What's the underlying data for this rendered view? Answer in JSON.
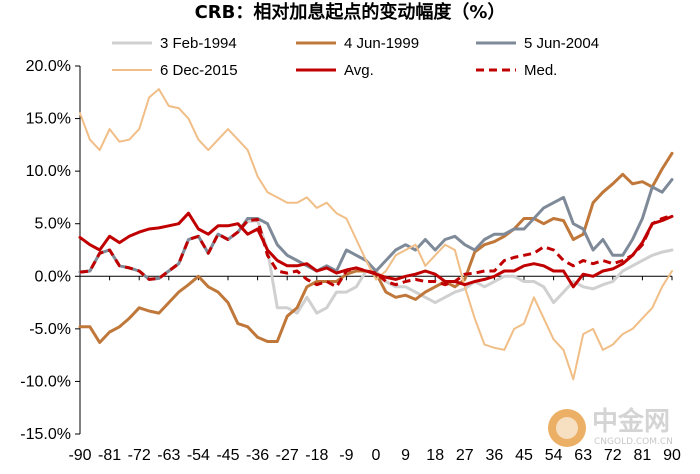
{
  "chart_data": {
    "type": "line",
    "title": "CRB：相对加息起点的变动幅度（%）",
    "xlabel": "",
    "ylabel": "",
    "ylim": [
      -15,
      20
    ],
    "xlim": [
      -90,
      90
    ],
    "y_ticks": [
      -15,
      -10,
      -5,
      0,
      5,
      10,
      15,
      20
    ],
    "y_tick_labels": [
      "-15.0%",
      "-10.0%",
      "-5.0%",
      "0.0%",
      "5.0%",
      "10.0%",
      "15.0%",
      "20.0%"
    ],
    "x_ticks": [
      -90,
      -81,
      -72,
      -63,
      -54,
      -45,
      -36,
      -27,
      -18,
      -9,
      0,
      9,
      18,
      27,
      36,
      45,
      54,
      63,
      72,
      81,
      90
    ],
    "x_tick_labels": [
      "-90",
      "-81",
      "-72",
      "-63",
      "-54",
      "-45",
      "-36",
      "-27",
      "-18",
      "-9",
      "0",
      "9",
      "18",
      "27",
      "36",
      "45",
      "54",
      "63",
      "72",
      "81",
      "90"
    ],
    "grid": false,
    "legend_position": "top",
    "series": [
      {
        "name": "3 Feb-1994",
        "color": "#d0d0d0",
        "dash": "solid",
        "width": 3,
        "x": [
          -90,
          -87,
          -84,
          -81,
          -78,
          -75,
          -72,
          -69,
          -66,
          -63,
          -60,
          -57,
          -54,
          -51,
          -48,
          -45,
          -42,
          -39,
          -36,
          -33,
          -30,
          -27,
          -24,
          -21,
          -18,
          -15,
          -12,
          -9,
          -6,
          -3,
          0,
          3,
          6,
          9,
          12,
          15,
          18,
          21,
          24,
          27,
          30,
          33,
          36,
          39,
          42,
          45,
          48,
          51,
          54,
          57,
          60,
          63,
          66,
          69,
          72,
          75,
          78,
          81,
          84,
          87,
          90
        ],
        "y": [
          0.4,
          0.5,
          2.2,
          2.5,
          1.0,
          0.8,
          0.5,
          -0.3,
          -0.2,
          0.5,
          1.2,
          3.5,
          3.8,
          2.2,
          4.0,
          3.5,
          4.2,
          5.2,
          5.3,
          2.5,
          -3.0,
          -3.0,
          -3.5,
          -2.0,
          -3.5,
          -3.0,
          -1.5,
          -1.5,
          -1.0,
          0.5,
          0.5,
          -0.5,
          -1.0,
          -1.0,
          -1.5,
          -2.0,
          -2.5,
          -2.0,
          -1.5,
          -1.2,
          -0.5,
          -1.0,
          -0.5,
          0.0,
          0.0,
          -0.5,
          -0.5,
          -1.0,
          -2.5,
          -1.5,
          -0.5,
          -1.0,
          -1.2,
          -0.8,
          -0.5,
          0.5,
          1.0,
          1.5,
          2.0,
          2.3,
          2.5
        ]
      },
      {
        "name": "4 Jun-1999",
        "color": "#c0773a",
        "dash": "solid",
        "width": 3,
        "x": [
          -90,
          -87,
          -84,
          -81,
          -78,
          -75,
          -72,
          -69,
          -66,
          -63,
          -60,
          -57,
          -54,
          -51,
          -48,
          -45,
          -42,
          -39,
          -36,
          -33,
          -30,
          -27,
          -24,
          -21,
          -18,
          -15,
          -12,
          -9,
          -6,
          -3,
          0,
          3,
          6,
          9,
          12,
          15,
          18,
          21,
          24,
          27,
          30,
          33,
          36,
          39,
          42,
          45,
          48,
          51,
          54,
          57,
          60,
          63,
          66,
          69,
          72,
          75,
          78,
          81,
          84,
          87,
          90
        ],
        "y": [
          -4.8,
          -4.8,
          -6.3,
          -5.3,
          -4.8,
          -4.0,
          -3.0,
          -3.3,
          -3.5,
          -2.5,
          -1.5,
          -0.8,
          0.0,
          -1.0,
          -1.5,
          -2.5,
          -4.5,
          -4.8,
          -5.8,
          -6.2,
          -6.2,
          -3.8,
          -3.0,
          -1.0,
          -0.5,
          -0.5,
          -0.5,
          0.2,
          0.5,
          0.5,
          0.3,
          -1.5,
          -2.0,
          -1.8,
          -2.2,
          -1.5,
          -1.0,
          -0.5,
          -1.0,
          -0.3,
          2.3,
          3.0,
          3.3,
          3.8,
          4.5,
          5.5,
          5.5,
          5.0,
          5.5,
          5.3,
          3.5,
          4.0,
          7.0,
          8.0,
          8.8,
          9.7,
          8.8,
          9.0,
          8.5,
          10.2,
          11.7
        ]
      },
      {
        "name": "5 Jun-2004",
        "color": "#7f8a99",
        "dash": "solid",
        "width": 3,
        "x": [
          -90,
          -87,
          -84,
          -81,
          -78,
          -75,
          -72,
          -69,
          -66,
          -63,
          -60,
          -57,
          -54,
          -51,
          -48,
          -45,
          -42,
          -39,
          -36,
          -33,
          -30,
          -27,
          -24,
          -21,
          -18,
          -15,
          -12,
          -9,
          -6,
          -3,
          0,
          3,
          6,
          9,
          12,
          15,
          18,
          21,
          24,
          27,
          30,
          33,
          36,
          39,
          42,
          45,
          48,
          51,
          54,
          57,
          60,
          63,
          66,
          69,
          72,
          75,
          78,
          81,
          84,
          87,
          90
        ],
        "y": [
          0.4,
          0.5,
          2.2,
          2.5,
          1.0,
          0.8,
          0.5,
          -0.3,
          -0.2,
          0.5,
          1.2,
          3.5,
          3.8,
          2.2,
          4.0,
          3.5,
          4.2,
          5.5,
          5.5,
          5.0,
          3.0,
          2.0,
          1.5,
          1.0,
          0.5,
          1.0,
          0.5,
          2.5,
          2.0,
          1.5,
          0.5,
          1.5,
          2.5,
          3.0,
          2.5,
          3.5,
          2.5,
          3.5,
          3.8,
          3.0,
          2.5,
          3.5,
          4.0,
          4.0,
          4.5,
          4.5,
          5.5,
          6.5,
          7.0,
          7.5,
          5.0,
          4.5,
          2.5,
          3.5,
          2.0,
          2.0,
          3.5,
          5.5,
          8.5,
          8.0,
          9.2
        ]
      },
      {
        "name": "6 Dec-2015",
        "color": "#f0be86",
        "dash": "solid",
        "width": 2,
        "x": [
          -90,
          -87,
          -84,
          -81,
          -78,
          -75,
          -72,
          -69,
          -66,
          -63,
          -60,
          -57,
          -54,
          -51,
          -48,
          -45,
          -42,
          -39,
          -36,
          -33,
          -30,
          -27,
          -24,
          -21,
          -18,
          -15,
          -12,
          -9,
          -6,
          -3,
          0,
          3,
          6,
          9,
          12,
          15,
          18,
          21,
          24,
          27,
          30,
          33,
          36,
          39,
          42,
          45,
          48,
          51,
          54,
          57,
          60,
          63,
          66,
          69,
          72,
          75,
          78,
          81,
          84,
          87,
          90
        ],
        "y": [
          15.5,
          13.0,
          12.0,
          14.0,
          12.8,
          13.0,
          14.0,
          17.0,
          17.8,
          16.2,
          16.0,
          15.0,
          13.0,
          12.0,
          13.0,
          14.0,
          13.0,
          12.0,
          9.5,
          8.0,
          7.5,
          7.0,
          7.0,
          7.5,
          6.5,
          7.0,
          6.0,
          5.5,
          3.5,
          1.5,
          -0.3,
          0.5,
          2.0,
          2.5,
          3.0,
          1.0,
          2.0,
          3.0,
          2.5,
          -1.0,
          -4.0,
          -6.5,
          -6.8,
          -7.0,
          -5.0,
          -4.5,
          -2.0,
          -4.0,
          -6.0,
          -7.0,
          -9.8,
          -5.5,
          -5.0,
          -7.0,
          -6.5,
          -5.5,
          -5.0,
          -4.0,
          -3.0,
          -1.0,
          0.5
        ]
      },
      {
        "name": "Avg.",
        "color": "#c00000",
        "dash": "solid",
        "width": 3,
        "x": [
          -90,
          -87,
          -84,
          -81,
          -78,
          -75,
          -72,
          -69,
          -66,
          -63,
          -60,
          -57,
          -54,
          -51,
          -48,
          -45,
          -42,
          -39,
          -36,
          -33,
          -30,
          -27,
          -24,
          -21,
          -18,
          -15,
          -12,
          -9,
          -6,
          -3,
          0,
          3,
          6,
          9,
          12,
          15,
          18,
          21,
          24,
          27,
          30,
          33,
          36,
          39,
          42,
          45,
          48,
          51,
          54,
          57,
          60,
          63,
          66,
          69,
          72,
          75,
          78,
          81,
          84,
          87,
          90
        ],
        "y": [
          3.7,
          3.0,
          2.5,
          3.8,
          3.2,
          3.8,
          4.2,
          4.5,
          4.6,
          4.8,
          5.0,
          6.0,
          4.5,
          4.0,
          4.8,
          4.8,
          5.0,
          4.0,
          4.5,
          2.5,
          1.5,
          1.0,
          1.0,
          1.2,
          0.5,
          0.8,
          0.3,
          0.6,
          0.8,
          0.5,
          0.2,
          -0.1,
          -0.3,
          0.0,
          0.2,
          0.5,
          0.2,
          -0.5,
          -0.5,
          -0.8,
          -0.5,
          -0.3,
          0.0,
          0.5,
          0.5,
          1.0,
          1.2,
          1.0,
          0.5,
          0.5,
          -1.0,
          0.2,
          0.0,
          0.5,
          0.7,
          1.2,
          2.0,
          3.2,
          5.0,
          5.3,
          5.7
        ]
      },
      {
        "name": "Med.",
        "color": "#c00000",
        "dash": "dashed",
        "width": 3,
        "x": [
          -90,
          -87,
          -84,
          -81,
          -78,
          -75,
          -72,
          -69,
          -66,
          -63,
          -60,
          -57,
          -54,
          -51,
          -48,
          -45,
          -42,
          -39,
          -36,
          -33,
          -30,
          -27,
          -24,
          -21,
          -18,
          -15,
          -12,
          -9,
          -6,
          -3,
          0,
          3,
          6,
          9,
          12,
          15,
          18,
          21,
          24,
          27,
          30,
          33,
          36,
          39,
          42,
          45,
          48,
          51,
          54,
          57,
          60,
          63,
          66,
          69,
          72,
          75,
          78,
          81,
          84,
          87,
          90
        ],
        "y": [
          0.4,
          0.5,
          2.2,
          2.5,
          1.0,
          0.8,
          0.5,
          -0.3,
          -0.2,
          0.5,
          1.2,
          3.5,
          3.8,
          2.2,
          4.0,
          3.5,
          4.2,
          5.3,
          5.4,
          2.0,
          0.5,
          0.3,
          0.5,
          -0.3,
          -0.8,
          -0.5,
          -1.0,
          0.5,
          0.8,
          0.5,
          0.3,
          -0.5,
          -0.8,
          -0.5,
          -0.3,
          -0.5,
          -0.5,
          -0.8,
          -0.5,
          0.2,
          0.3,
          0.5,
          0.5,
          1.5,
          1.8,
          2.0,
          2.2,
          2.8,
          2.5,
          1.5,
          1.0,
          1.5,
          1.2,
          1.5,
          1.2,
          1.5,
          2.0,
          3.0,
          5.0,
          5.5,
          5.8
        ]
      }
    ]
  },
  "watermark": {
    "brand": "中金网",
    "domain": "CNGOLD.COM.CN"
  }
}
